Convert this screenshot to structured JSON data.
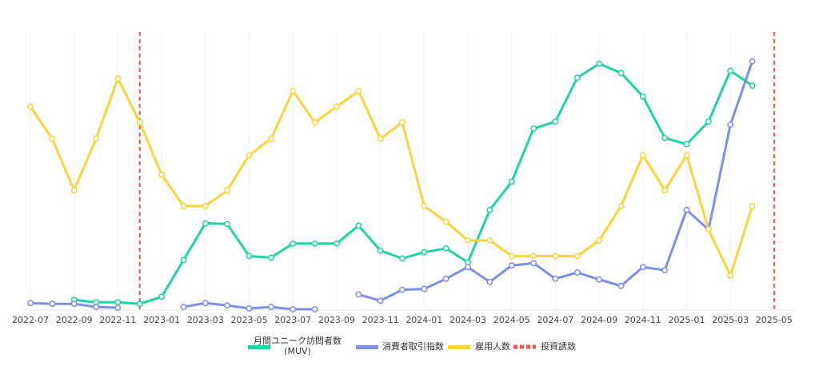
{
  "chart_data": {
    "type": "line",
    "x": [
      "2022-07",
      "2022-08",
      "2022-09",
      "2022-10",
      "2022-11",
      "2022-12",
      "2023-01",
      "2023-02",
      "2023-03",
      "2023-04",
      "2023-05",
      "2023-06",
      "2023-07",
      "2023-08",
      "2023-09",
      "2023-10",
      "2023-11",
      "2023-12",
      "2024-01",
      "2024-02",
      "2024-03",
      "2024-04",
      "2024-05",
      "2024-06",
      "2024-07",
      "2024-08",
      "2024-09",
      "2024-10",
      "2024-11",
      "2024-12",
      "2025-01",
      "2025-02",
      "2025-03",
      "2025-04",
      "2025-05"
    ],
    "x_tick_labels": [
      "2022-07",
      "2022-09",
      "2022-11",
      "2023-01",
      "2023-03",
      "2023-05",
      "2023-07",
      "2023-09",
      "2023-11",
      "2024-01",
      "2024-03",
      "2024-05",
      "2024-07",
      "2024-09",
      "2024-11",
      "2025-01",
      "2025-03",
      "2025-05"
    ],
    "series": [
      {
        "name": "月間ユニーク訪問者数\n(MUV)",
        "color": "#1fd3a3",
        "values": [
          null,
          null,
          13,
          10,
          10,
          8,
          17,
          64,
          111,
          110,
          69,
          67,
          85,
          85,
          85,
          108,
          76,
          66,
          74,
          79,
          61,
          128,
          164,
          232,
          241,
          297,
          315,
          303,
          273,
          220,
          212,
          241,
          306,
          287,
          null
        ]
      },
      {
        "name": "消費者取引指数",
        "color": "#7e8ee6",
        "values": [
          9,
          8,
          8,
          4,
          3,
          null,
          null,
          4,
          9,
          6,
          2,
          4,
          1,
          1,
          null,
          20,
          12,
          26,
          27,
          40,
          55,
          36,
          57,
          60,
          40,
          48,
          39,
          31,
          55,
          51,
          128,
          103,
          237,
          318,
          null
        ]
      },
      {
        "name": "雇用人数",
        "color": "#f9d43a",
        "values": [
          260,
          219,
          153,
          219,
          296,
          240,
          173,
          133,
          133,
          153,
          198,
          219,
          280,
          240,
          260,
          280,
          219,
          240,
          133,
          113,
          89,
          89,
          69,
          69,
          69,
          69,
          89,
          133,
          198,
          153,
          198,
          103,
          44,
          133,
          null
        ]
      }
    ],
    "vlines": {
      "name": "投資誘致",
      "color": "#e8554f",
      "x": [
        "2022-12",
        "2025-05"
      ]
    },
    "ylim": [
      0,
      330
    ],
    "grid": "vertical",
    "legend": "bottom-center"
  }
}
